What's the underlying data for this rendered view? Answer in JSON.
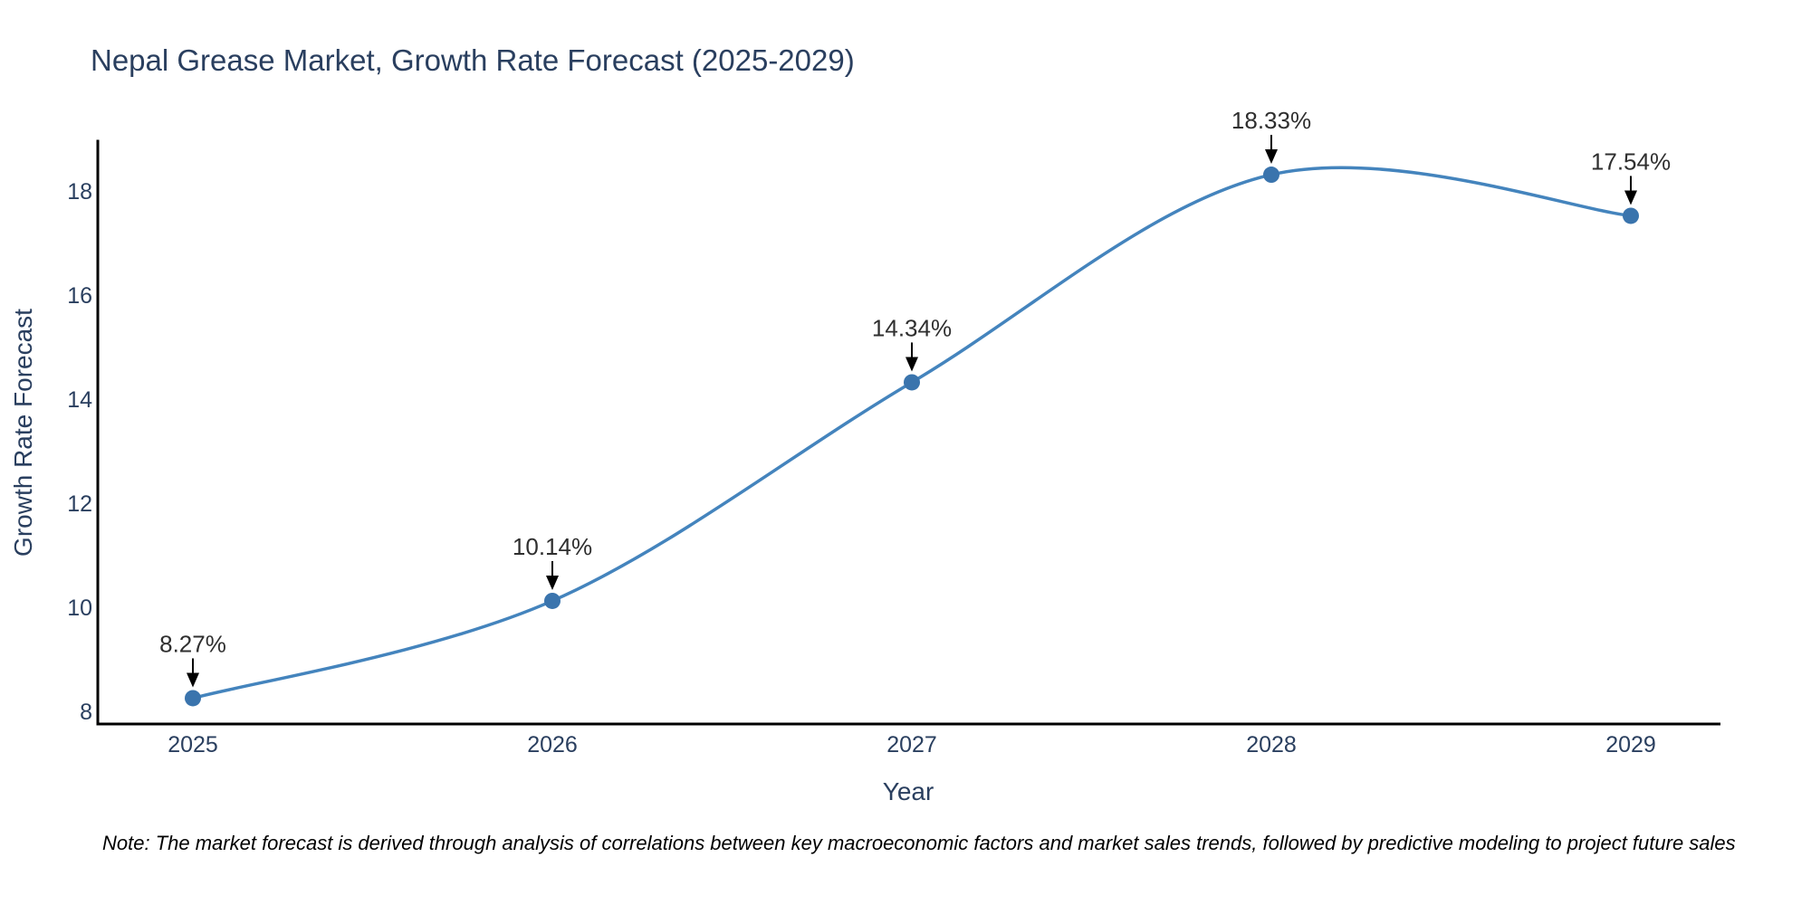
{
  "chart_data": {
    "type": "line",
    "title": "Nepal Grease Market, Growth Rate Forecast (2025-2029)",
    "xlabel": "Year",
    "ylabel": "Growth Rate Forecast",
    "x": [
      2025,
      2026,
      2027,
      2028,
      2029
    ],
    "values": [
      8.27,
      10.14,
      14.34,
      18.33,
      17.54
    ],
    "point_labels": [
      "8.27%",
      "10.14%",
      "14.34%",
      "18.33%",
      "17.54%"
    ],
    "yticks": [
      8,
      10,
      12,
      14,
      16,
      18
    ],
    "ylim": [
      7.77,
      19.0
    ],
    "xlim": [
      2024.74,
      2029.25
    ],
    "line_shape": "spline",
    "grid": false,
    "legend_position": "none",
    "note": "Note: The market forecast is derived through analysis of correlations between key macroeconomic factors and market sales trends, followed by predictive modeling to project future sales",
    "colors": {
      "line": "#4484bd",
      "marker": "#3a74ad",
      "axis_line": "#000000",
      "label_text": "#2a3f5f",
      "annotation_text": "#2f2f2f",
      "arrow": "#000000",
      "note_text": "#000000",
      "background": "#ffffff"
    }
  }
}
